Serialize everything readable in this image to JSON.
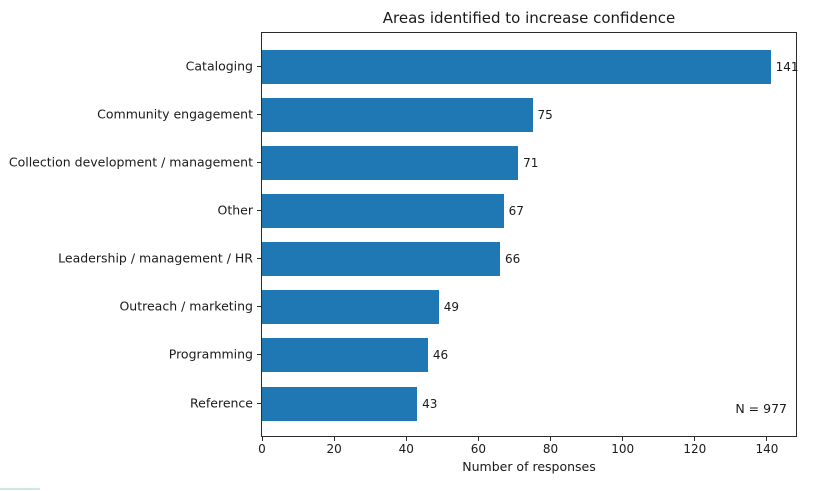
{
  "chart_data": {
    "type": "bar",
    "orientation": "horizontal",
    "title": "Areas identified to increase confidence",
    "categories": [
      "Cataloging",
      "Community engagement",
      "Collection development / management",
      "Other",
      "Leadership / management / HR",
      "Outreach / marketing",
      "Programming",
      "Reference"
    ],
    "values": [
      141,
      75,
      71,
      67,
      66,
      49,
      46,
      43
    ],
    "value_labels": true,
    "xlabel": "Number of responses",
    "xlim": [
      0,
      148.05
    ],
    "xticks": [
      0,
      20,
      40,
      60,
      80,
      100,
      120,
      140
    ],
    "annotation": "N = 977",
    "bar_color": "#1f77b4",
    "grid": false,
    "legend": "none",
    "artifact_color": "#cdeadd"
  }
}
